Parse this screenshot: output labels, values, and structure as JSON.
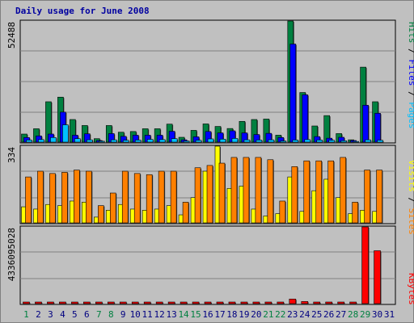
{
  "title": "Daily usage for June 2008",
  "colors": {
    "hits": "#008040",
    "files": "#0000ff",
    "pages": "#00c0ff",
    "visits": "#ffff00",
    "sites": "#ff8000",
    "kbytes": "#ff0000",
    "weekend_day": "#008040",
    "weekday_day": "#000080"
  },
  "chart_data": [
    {
      "type": "bar",
      "title": "Daily usage for June 2008",
      "ylabel_top_value": "52488",
      "ylim": [
        0,
        52488
      ],
      "legend": [
        "Pages",
        "Files",
        "Hits"
      ],
      "categories": [
        "1",
        "2",
        "3",
        "4",
        "5",
        "6",
        "7",
        "8",
        "9",
        "10",
        "11",
        "12",
        "13",
        "14",
        "15",
        "16",
        "17",
        "18",
        "19",
        "20",
        "21",
        "22",
        "23",
        "24",
        "25",
        "26",
        "27",
        "28",
        "29",
        "30",
        "31"
      ],
      "series": [
        {
          "name": "Hits",
          "values": [
            3500,
            5800,
            17500,
            19500,
            9800,
            7200,
            1500,
            7200,
            4300,
            4600,
            5800,
            5800,
            7800,
            2100,
            5100,
            7900,
            6800,
            5900,
            9000,
            9800,
            10000,
            3000,
            52488,
            21500,
            7000,
            11500,
            3700,
            1000,
            32500,
            17500,
            0
          ]
        },
        {
          "name": "Files",
          "values": [
            2000,
            2700,
            3500,
            13000,
            3000,
            3600,
            700,
            3700,
            2500,
            3000,
            3000,
            3000,
            4700,
            1000,
            2300,
            4600,
            4000,
            4900,
            4000,
            3300,
            3800,
            2000,
            42500,
            20500,
            2400,
            1700,
            2100,
            700,
            16000,
            12500,
            0
          ]
        },
        {
          "name": "Pages",
          "values": [
            900,
            1100,
            2000,
            7500,
            1500,
            1000,
            400,
            1000,
            800,
            900,
            1200,
            1100,
            1500,
            500,
            800,
            1400,
            1300,
            1600,
            1000,
            900,
            1000,
            500,
            900,
            1100,
            900,
            800,
            600,
            300,
            1000,
            800,
            0
          ]
        }
      ]
    },
    {
      "type": "bar",
      "ylabel_top_value": "334",
      "ylim": [
        0,
        334
      ],
      "legend": [
        "Sites",
        "Visits"
      ],
      "categories": [
        "1",
        "2",
        "3",
        "4",
        "5",
        "6",
        "7",
        "8",
        "9",
        "10",
        "11",
        "12",
        "13",
        "14",
        "15",
        "16",
        "17",
        "18",
        "19",
        "20",
        "21",
        "22",
        "23",
        "24",
        "25",
        "26",
        "27",
        "28",
        "29",
        "30",
        "31"
      ],
      "series": [
        {
          "name": "Visits",
          "values": [
            70,
            60,
            80,
            75,
            95,
            90,
            25,
            55,
            80,
            60,
            55,
            60,
            75,
            35,
            110,
            225,
            334,
            150,
            160,
            60,
            30,
            40,
            200,
            50,
            140,
            190,
            110,
            40,
            55,
            50,
            0
          ]
        },
        {
          "name": "Sites",
          "values": [
            200,
            225,
            215,
            220,
            230,
            225,
            75,
            130,
            225,
            215,
            210,
            225,
            225,
            90,
            240,
            250,
            260,
            285,
            285,
            285,
            275,
            95,
            245,
            270,
            270,
            270,
            285,
            90,
            230,
            230,
            0
          ]
        }
      ]
    },
    {
      "type": "bar",
      "ylabel_top_value": "4336095028",
      "ylim": [
        0,
        4336095028
      ],
      "legend": [
        "KBytes"
      ],
      "categories": [
        "1",
        "2",
        "3",
        "4",
        "5",
        "6",
        "7",
        "8",
        "9",
        "10",
        "11",
        "12",
        "13",
        "14",
        "15",
        "16",
        "17",
        "18",
        "19",
        "20",
        "21",
        "22",
        "23",
        "24",
        "25",
        "26",
        "27",
        "28",
        "29",
        "30",
        "31"
      ],
      "series": [
        {
          "name": "KBytes",
          "values": [
            15000000,
            15000000,
            15000000,
            15000000,
            15000000,
            15000000,
            10000000,
            15000000,
            15000000,
            15000000,
            15000000,
            15000000,
            15000000,
            10000000,
            15000000,
            15000000,
            15000000,
            15000000,
            15000000,
            15000000,
            15000000,
            10000000,
            260000000,
            120000000,
            15000000,
            15000000,
            15000000,
            10000000,
            4336095028,
            2990000000,
            0
          ]
        }
      ]
    }
  ],
  "weekend_days": [
    1,
    7,
    8,
    14,
    15,
    21,
    22,
    28,
    29
  ]
}
